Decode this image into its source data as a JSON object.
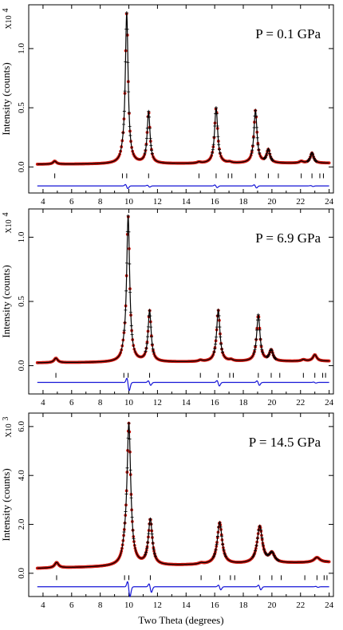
{
  "chart_data": [
    {
      "type": "line",
      "pressure_label": "P = 0.1 GPa",
      "ylabel": "Intensity (counts)",
      "scale_label": "X10",
      "scale_exp": "4",
      "xlim": [
        3,
        24.3
      ],
      "ylim": [
        -0.22,
        1.37
      ],
      "yticks": [
        0.0,
        0.5,
        1.0
      ],
      "ytick_labels": [
        "0.0",
        "0.5",
        "1.0"
      ],
      "xticks": [
        4,
        6,
        8,
        10,
        12,
        14,
        16,
        18,
        20,
        22,
        24
      ],
      "xtick_labels": [
        "4",
        "6",
        "8",
        "10",
        "12",
        "14",
        "16",
        "18",
        "20",
        "22",
        "24"
      ],
      "background": [
        [
          3.6,
          0.022
        ],
        [
          24,
          0.032
        ]
      ],
      "peaks": [
        {
          "pos": 4.82,
          "height": 0.026,
          "width": 0.14
        },
        {
          "pos": 9.55,
          "height": 0.03,
          "width": 0.12
        },
        {
          "pos": 9.85,
          "height": 1.27,
          "width": 0.12
        },
        {
          "pos": 11.38,
          "height": 0.435,
          "width": 0.12
        },
        {
          "pos": 14.9,
          "height": 0.01,
          "width": 0.15
        },
        {
          "pos": 16.1,
          "height": 0.47,
          "width": 0.13
        },
        {
          "pos": 17.05,
          "height": 0.008,
          "width": 0.15
        },
        {
          "pos": 18.85,
          "height": 0.445,
          "width": 0.13
        },
        {
          "pos": 19.75,
          "height": 0.11,
          "width": 0.14
        },
        {
          "pos": 22.05,
          "height": 0.015,
          "width": 0.15
        },
        {
          "pos": 22.8,
          "height": 0.085,
          "width": 0.14
        }
      ],
      "reflections": [
        4.82,
        9.55,
        9.85,
        11.38,
        14.9,
        16.1,
        16.95,
        17.2,
        18.85,
        19.75,
        20.45,
        22.05,
        22.8,
        23.35,
        23.6
      ],
      "reflection_y": -0.075,
      "diff_offset": -0.16,
      "diff_features": [
        {
          "pos": 9.85,
          "amp": 0.018
        },
        {
          "pos": 11.38,
          "amp": 0.008
        },
        {
          "pos": 16.1,
          "amp": 0.012
        },
        {
          "pos": 18.85,
          "amp": 0.014
        },
        {
          "pos": 22.8,
          "amp": 0.004
        }
      ]
    },
    {
      "type": "line",
      "pressure_label": "P = 6.9 GPa",
      "ylabel": "Intensity (counts)",
      "scale_label": "X10",
      "scale_exp": "4",
      "xlim": [
        3,
        24.3
      ],
      "ylim": [
        -0.22,
        1.22
      ],
      "yticks": [
        0.0,
        0.5,
        1.0
      ],
      "ytick_labels": [
        "0.0",
        "0.5",
        "1.0"
      ],
      "xticks": [
        4,
        6,
        8,
        10,
        12,
        14,
        16,
        18,
        20,
        22,
        24
      ],
      "xtick_labels": [
        "4",
        "6",
        "8",
        "10",
        "12",
        "14",
        "16",
        "18",
        "20",
        "22",
        "24"
      ],
      "background": [
        [
          3.6,
          0.022
        ],
        [
          24,
          0.035
        ]
      ],
      "peaks": [
        {
          "pos": 4.9,
          "height": 0.035,
          "width": 0.15
        },
        {
          "pos": 9.65,
          "height": 0.04,
          "width": 0.13
        },
        {
          "pos": 9.95,
          "height": 1.13,
          "width": 0.13
        },
        {
          "pos": 11.45,
          "height": 0.395,
          "width": 0.13
        },
        {
          "pos": 15.0,
          "height": 0.01,
          "width": 0.15
        },
        {
          "pos": 16.25,
          "height": 0.4,
          "width": 0.14
        },
        {
          "pos": 17.15,
          "height": 0.01,
          "width": 0.15
        },
        {
          "pos": 19.05,
          "height": 0.36,
          "width": 0.14
        },
        {
          "pos": 19.95,
          "height": 0.085,
          "width": 0.15
        },
        {
          "pos": 22.2,
          "height": 0.012,
          "width": 0.16
        },
        {
          "pos": 23.0,
          "height": 0.05,
          "width": 0.16
        }
      ],
      "reflections": [
        4.9,
        9.65,
        9.95,
        11.45,
        15.0,
        16.25,
        17.05,
        17.3,
        19.05,
        19.95,
        20.55,
        22.2,
        23.0,
        23.55,
        23.75
      ],
      "reflection_y": -0.075,
      "diff_offset": -0.13,
      "diff_features": [
        {
          "pos": 9.95,
          "amp": 0.05
        },
        {
          "pos": 11.45,
          "amp": 0.018
        },
        {
          "pos": 16.25,
          "amp": 0.022
        },
        {
          "pos": 19.05,
          "amp": 0.018
        },
        {
          "pos": 23.0,
          "amp": 0.004
        }
      ]
    },
    {
      "type": "line",
      "pressure_label": "P = 14.5 GPa",
      "ylabel": "Intensity (counts)",
      "xlabel": "Two Theta (degrees)",
      "scale_label": "X10",
      "scale_exp": "3",
      "xlim": [
        3,
        24.3
      ],
      "ylim": [
        -0.95,
        6.55
      ],
      "yticks": [
        0.0,
        2.0,
        4.0,
        6.0
      ],
      "ytick_labels": [
        "0.0",
        "2.0",
        "4.0",
        "6.0"
      ],
      "xticks": [
        4,
        6,
        8,
        10,
        12,
        14,
        16,
        18,
        20,
        22,
        24
      ],
      "xtick_labels": [
        "4",
        "6",
        "8",
        "10",
        "12",
        "14",
        "16",
        "18",
        "20",
        "22",
        "24"
      ],
      "background": [
        [
          3.6,
          0.2
        ],
        [
          24,
          0.45
        ]
      ],
      "peaks": [
        {
          "pos": 4.95,
          "height": 0.22,
          "width": 0.16
        },
        {
          "pos": 9.7,
          "height": 0.35,
          "width": 0.16
        },
        {
          "pos": 10.0,
          "height": 5.75,
          "width": 0.16
        },
        {
          "pos": 11.5,
          "height": 1.85,
          "width": 0.17
        },
        {
          "pos": 15.05,
          "height": 0.05,
          "width": 0.2
        },
        {
          "pos": 16.35,
          "height": 1.7,
          "width": 0.2
        },
        {
          "pos": 19.15,
          "height": 1.5,
          "width": 0.22
        },
        {
          "pos": 20.0,
          "height": 0.38,
          "width": 0.22
        },
        {
          "pos": 23.15,
          "height": 0.2,
          "width": 0.25
        }
      ],
      "reflections": [
        4.95,
        9.7,
        10.0,
        11.5,
        15.05,
        16.35,
        17.1,
        17.4,
        19.15,
        20.0,
        20.65,
        22.3,
        23.15,
        23.65,
        23.85
      ],
      "reflection_y": -0.18,
      "diff_offset": -0.55,
      "diff_features": [
        {
          "pos": 10.0,
          "amp": 0.32
        },
        {
          "pos": 11.5,
          "amp": 0.18
        },
        {
          "pos": 16.35,
          "amp": 0.1
        },
        {
          "pos": 19.15,
          "amp": 0.1
        },
        {
          "pos": 23.15,
          "amp": 0.02
        }
      ]
    }
  ]
}
